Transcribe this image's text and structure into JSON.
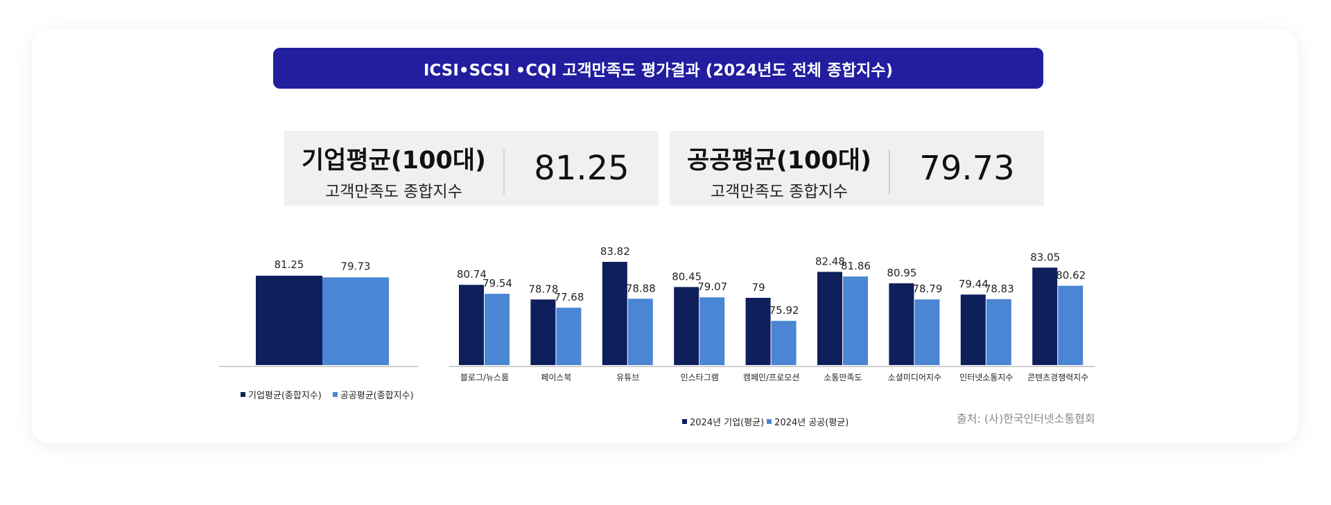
{
  "title": "ICSI•SCSI •CQI 고객만족도 평가결과 (2024년도 전체 종합지수)",
  "summary": [
    {
      "name": "기업평균(100대)",
      "sub": "고객만족도 종합지수",
      "value": "81.25"
    },
    {
      "name": "공공평균(100대)",
      "sub": "고객만족도 종합지수",
      "value": "79.73"
    }
  ],
  "colors": {
    "corporate": "#0f1f5c",
    "public": "#4a86d4",
    "banner": "#221e9f"
  },
  "chart_data": [
    {
      "type": "bar",
      "categories": [
        ""
      ],
      "series": [
        {
          "name": "기업평균(종합지수)",
          "values": [
            81.25
          ]
        },
        {
          "name": "공공평균(종합지수)",
          "values": [
            79.73
          ]
        }
      ],
      "data_labels": [
        [
          "81.25"
        ],
        [
          "79.73"
        ]
      ],
      "ylim": [
        0,
        81.25
      ],
      "legend": "bottom"
    },
    {
      "type": "bar",
      "categories": [
        "블로그/뉴스룸",
        "페이스북",
        "유튜브",
        "인스타그램",
        "캠페인/프로모션",
        "소통만족도",
        "소셜미디어지수",
        "인터넷소통지수",
        "콘텐츠경쟁력지수"
      ],
      "series": [
        {
          "name": "2024년 기업(평균)",
          "values": [
            80.74,
            78.78,
            83.82,
            80.45,
            79,
            82.48,
            80.95,
            79.44,
            83.05
          ]
        },
        {
          "name": "2024년 공공(평균)",
          "values": [
            79.54,
            77.68,
            78.88,
            79.07,
            75.92,
            81.86,
            78.79,
            78.83,
            80.62
          ]
        }
      ],
      "data_labels": [
        [
          "80.74",
          "78.78",
          "83.82",
          "80.45",
          "79",
          "82.48",
          "80.95",
          "79.44",
          "83.05"
        ],
        [
          "79.54",
          "77.68",
          "78.88",
          "79.07",
          "75.92",
          "81.86",
          "78.79",
          "78.83",
          "80.62"
        ]
      ],
      "ylim": [
        70,
        83.82
      ],
      "legend": "bottom"
    }
  ],
  "source": "출처: (사)한국인터넷소통협회"
}
